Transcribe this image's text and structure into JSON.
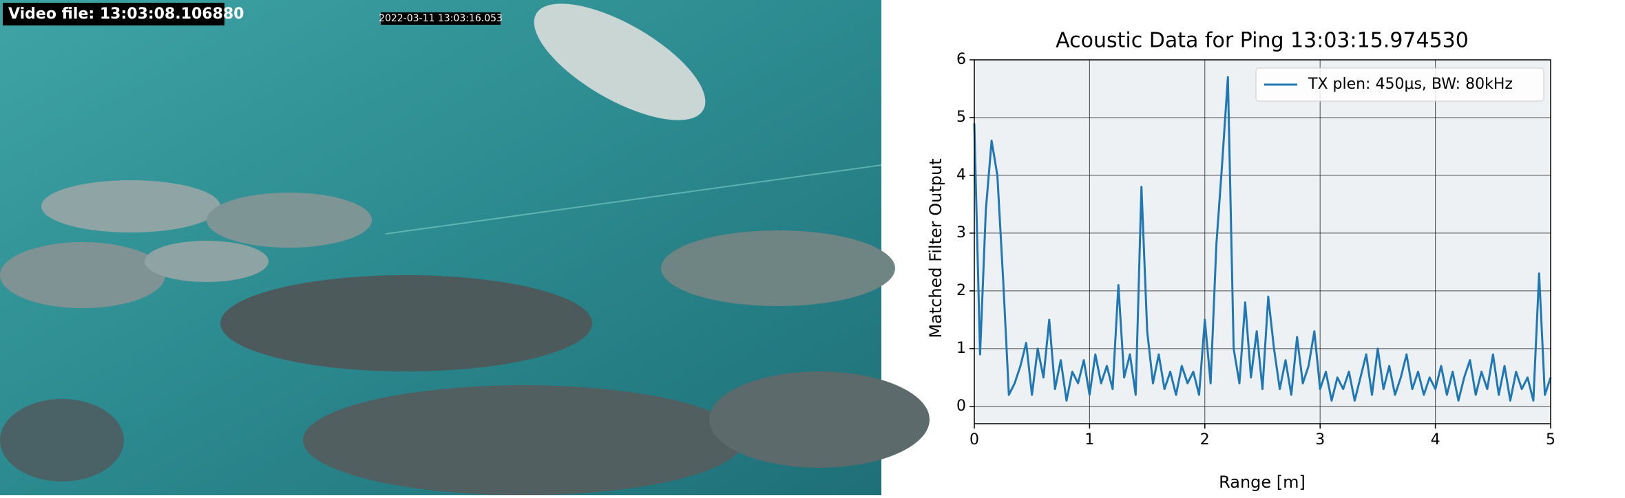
{
  "video": {
    "label": "Video file: 13:03:08.106880",
    "timestamp": "2022-03-11  13:03:16.053"
  },
  "chart_data": {
    "type": "line",
    "title": "Acoustic Data for Ping 13:03:15.974530",
    "xlabel": "Range [m]",
    "ylabel": "Matched Filter Output",
    "x": [
      0,
      0.05,
      0.1,
      0.15,
      0.2,
      0.25,
      0.3,
      0.35,
      0.4,
      0.45,
      0.5,
      0.55,
      0.6,
      0.65,
      0.7,
      0.75,
      0.8,
      0.85,
      0.9,
      0.95,
      1.0,
      1.05,
      1.1,
      1.15,
      1.2,
      1.25,
      1.3,
      1.35,
      1.4,
      1.45,
      1.5,
      1.55,
      1.6,
      1.65,
      1.7,
      1.75,
      1.8,
      1.85,
      1.9,
      1.95,
      2.0,
      2.05,
      2.1,
      2.15,
      2.2,
      2.25,
      2.3,
      2.35,
      2.4,
      2.45,
      2.5,
      2.55,
      2.6,
      2.65,
      2.7,
      2.75,
      2.8,
      2.85,
      2.9,
      2.95,
      3.0,
      3.05,
      3.1,
      3.15,
      3.2,
      3.25,
      3.3,
      3.35,
      3.4,
      3.45,
      3.5,
      3.55,
      3.6,
      3.65,
      3.7,
      3.75,
      3.8,
      3.85,
      3.9,
      3.95,
      4.0,
      4.05,
      4.1,
      4.15,
      4.2,
      4.25,
      4.3,
      4.35,
      4.4,
      4.45,
      4.5,
      4.55,
      4.6,
      4.65,
      4.7,
      4.75,
      4.8,
      4.85,
      4.9,
      4.95,
      5.0
    ],
    "series": [
      {
        "name": "TX plen: 450μs, BW: 80kHz",
        "color": "#1f77b4",
        "values": [
          4.9,
          0.9,
          3.4,
          4.6,
          4.0,
          2.2,
          0.2,
          0.4,
          0.7,
          1.1,
          0.2,
          1.0,
          0.5,
          1.5,
          0.3,
          0.8,
          0.1,
          0.6,
          0.4,
          0.8,
          0.2,
          0.9,
          0.4,
          0.7,
          0.3,
          2.1,
          0.5,
          0.9,
          0.2,
          3.8,
          1.3,
          0.4,
          0.9,
          0.3,
          0.6,
          0.2,
          0.7,
          0.4,
          0.6,
          0.2,
          1.5,
          0.4,
          2.8,
          4.2,
          5.7,
          1.0,
          0.4,
          1.8,
          0.5,
          1.3,
          0.3,
          1.9,
          1.0,
          0.3,
          0.8,
          0.2,
          1.2,
          0.4,
          0.7,
          1.3,
          0.3,
          0.6,
          0.1,
          0.5,
          0.3,
          0.6,
          0.1,
          0.5,
          0.9,
          0.2,
          1.0,
          0.3,
          0.7,
          0.2,
          0.5,
          0.9,
          0.3,
          0.6,
          0.2,
          0.5,
          0.3,
          0.7,
          0.2,
          0.6,
          0.1,
          0.5,
          0.8,
          0.2,
          0.6,
          0.3,
          0.9,
          0.2,
          0.7,
          0.1,
          0.6,
          0.3,
          0.5,
          0.1,
          2.3,
          0.2,
          0.5
        ]
      }
    ],
    "xlim": [
      0,
      5
    ],
    "ylim": [
      -0.3,
      6
    ],
    "xticks": [
      0,
      1,
      2,
      3,
      4,
      5
    ],
    "yticks": [
      0,
      1,
      2,
      3,
      4,
      5,
      6
    ],
    "grid": true,
    "legend": "upper right"
  }
}
